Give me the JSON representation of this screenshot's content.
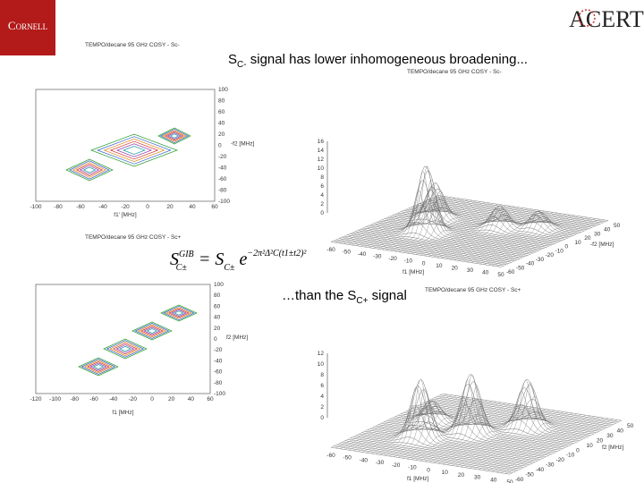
{
  "header": {
    "left_logo": "Cornell",
    "right_logo": "ACERT"
  },
  "headline_top": {
    "symbol": "S",
    "subscript": "C-",
    "text": " signal has lower inhomogeneous broadening..."
  },
  "headline_bottom": {
    "text": "…than the S",
    "subscript": "C+",
    "suffix": " signal"
  },
  "formula": {
    "lhs": "S",
    "lhs_sup": "GIB",
    "lhs_sub": "C±",
    "eq": " = S",
    "rhs_sub": "C±",
    "e": " e",
    "exponent": "−2π²Δ²C(t1±t2)²"
  },
  "plots": [
    {
      "kind": "contour",
      "title": "TEMPO/decane 95 GHz COSY - Sc-",
      "xticks": [
        "-100",
        "-80",
        "-60",
        "-40",
        "-20",
        "0",
        "20",
        "40",
        "60"
      ],
      "yticks": [
        "100",
        "80",
        "60",
        "40",
        "20",
        "0",
        "-20",
        "-40",
        "-60",
        "-80",
        "-100"
      ],
      "xlabel": "f1' [MHz]",
      "ylabel": "-f2 [MHz]"
    },
    {
      "kind": "surface",
      "title": "TEMPO/decane 95 GHz COSY - Sc-",
      "zticks": [
        "16",
        "14",
        "12",
        "10",
        "8",
        "6",
        "4",
        "2",
        "0"
      ],
      "xticks": [
        "-60",
        "-50",
        "-40",
        "-30",
        "-20",
        "-10",
        "0",
        "10",
        "20",
        "30",
        "40",
        "50"
      ],
      "yticks": [
        "-60",
        "-50",
        "-40",
        "-30",
        "-20",
        "-10",
        "0",
        "10",
        "20",
        "30",
        "40",
        "50"
      ],
      "xlabel": "f1 [MHz]",
      "ylabel": "-f2 [MHz]"
    },
    {
      "kind": "contour",
      "title": "TEMPO/decane 95 GHz COSY - Sc+",
      "xticks": [
        "-120",
        "-100",
        "-80",
        "-60",
        "-40",
        "-20",
        "0",
        "20",
        "40",
        "60"
      ],
      "yticks": [
        "100",
        "80",
        "60",
        "40",
        "20",
        "0",
        "-20",
        "-40",
        "-60",
        "-80",
        "-100"
      ],
      "xlabel": "f1 [MHz]",
      "ylabel": "f2 [MHz]"
    },
    {
      "kind": "surface",
      "title": "TEMPO/decane 95 GHz COSY - Sc+",
      "zticks": [
        "12",
        "10",
        "8",
        "6",
        "4",
        "2",
        "0"
      ],
      "xticks": [
        "-60",
        "-50",
        "-40",
        "-30",
        "-20",
        "-10",
        "0",
        "10",
        "20",
        "30",
        "40",
        "50"
      ],
      "yticks": [
        "-60",
        "-50",
        "-40",
        "-30",
        "-20",
        "-10",
        "0",
        "10",
        "20",
        "30",
        "40",
        "50"
      ],
      "xlabel": "f1 [MHz]",
      "ylabel": "f2 [MHz]"
    }
  ]
}
